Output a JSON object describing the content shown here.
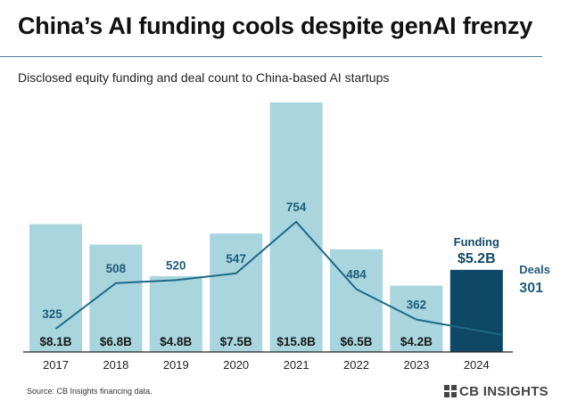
{
  "title": "China’s AI funding cools despite genAI frenzy",
  "subtitle": "Disclosed equity funding and deal count to China-based AI startups",
  "source": "Source: CB Insights financing data.",
  "logo": {
    "name": "CB INSIGHTS",
    "icon": "cb-insights-logo-icon"
  },
  "colors": {
    "bar": "#a8d5de",
    "bar_highlight": "#0f4766",
    "line": "#1c6a86",
    "deal_label": "#215c7a",
    "bar_label": "#1a1a1a",
    "axis": "#222222"
  },
  "chart_data": {
    "type": "bar",
    "categories": [
      "2017",
      "2018",
      "2019",
      "2020",
      "2021",
      "2022",
      "2023",
      "2024"
    ],
    "series": [
      {
        "name": "Funding",
        "values": [
          8.1,
          6.8,
          4.8,
          7.5,
          15.8,
          6.5,
          4.2,
          5.2
        ],
        "labels": [
          "$8.1B",
          "$6.8B",
          "$4.8B",
          "$7.5B",
          "$15.8B",
          "$6.5B",
          "$4.2B",
          "$5.2B"
        ]
      },
      {
        "name": "Deals",
        "type": "line",
        "values": [
          325,
          508,
          520,
          547,
          754,
          484,
          362,
          301
        ],
        "labels": [
          "325",
          "508",
          "520",
          "547",
          "754",
          "484",
          "362",
          "301"
        ]
      }
    ],
    "highlight": {
      "category": "2024",
      "funding_label": "Funding",
      "funding_value": "$5.2B",
      "deals_label": "Deals",
      "deals_value": "301"
    },
    "grid": false,
    "legend": "none"
  }
}
